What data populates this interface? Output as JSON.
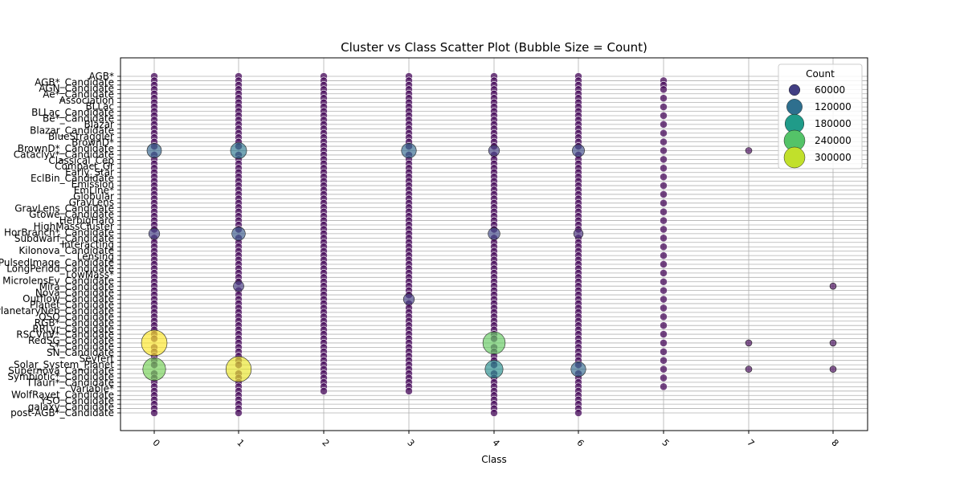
{
  "chart_data": {
    "type": "scatter",
    "title": "Cluster vs Class Scatter Plot (Bubble Size = Count)",
    "xlabel": "Class",
    "ylabel": "",
    "x_categories": [
      "0",
      "1",
      "2",
      "3",
      "4",
      "6",
      "5",
      "7",
      "8"
    ],
    "y_tick_labels_visible": [
      "AGB*",
      "AGB*_Candidate",
      "AGN_Candidate",
      "Ae*_Candidate",
      "Association",
      "BLLac",
      "BLLac_Candidate",
      "Be*_Candidate",
      "Blazar",
      "Blazar_Candidate",
      "BlueStraggler",
      "BrownD*",
      "BrownD*_Candidate",
      "Cataclyv*_Candidate",
      "Classical_Cep",
      "Compact_Gr",
      "Early_Star",
      "EclBin_Candidate",
      "Emission",
      "EmLine*",
      "Globular",
      "GravLens",
      "GravLens_Candidate",
      "Gtowe_Candidate",
      "HerbigHaro",
      "HighMassCluster",
      "HorBranch*_Candidate",
      "Subdwarf_Candidate",
      "Interacting",
      "Kilonova_Candidate",
      "Lensing",
      "PulsedImage_Candidate",
      "LongPeriod_Candidate",
      "LowMass*",
      "MicrolensEv_Candidate",
      "Mira_Candidate",
      "Nova_Candidate",
      "Outflow_Candidate",
      "Planet_Candidate",
      "PlanetaryNeb_Candidate",
      "QSO_Candidate",
      "RGB*_Candidate",
      "RRLyr_Candidate",
      "RSCVnV*_Candidate",
      "RedSG_Candidate",
      "S*_Candidate",
      "SN_Candidate",
      "Seyfert",
      "Solar_System_Planet",
      "Supernova_Candidate",
      "Symbiotic*_Candidate",
      "TTauri*_Candidate",
      "Variable*",
      "WolfRayet_Candidate",
      "YSO_Candidate",
      "galaxy_Candidate",
      "post-AGB*_Candidate"
    ],
    "n_y_rows": 78,
    "bubbles": [
      {
        "x": "0",
        "y_row": 17,
        "count": 105000
      },
      {
        "x": "1",
        "y_row": 17,
        "count": 130000
      },
      {
        "x": "3",
        "y_row": 17,
        "count": 110000
      },
      {
        "x": "4",
        "y_row": 17,
        "count": 60000
      },
      {
        "x": "6",
        "y_row": 17,
        "count": 75000
      },
      {
        "x": "7",
        "y_row": 17,
        "count": 5000
      },
      {
        "x": "0",
        "y_row": 36,
        "count": 60000
      },
      {
        "x": "1",
        "y_row": 36,
        "count": 90000
      },
      {
        "x": "4",
        "y_row": 36,
        "count": 70000
      },
      {
        "x": "6",
        "y_row": 36,
        "count": 45000
      },
      {
        "x": "1",
        "y_row": 48,
        "count": 55000
      },
      {
        "x": "3",
        "y_row": 51,
        "count": 60000
      },
      {
        "x": "8",
        "y_row": 48,
        "count": 5000
      },
      {
        "x": "0",
        "y_row": 61,
        "count": 330000
      },
      {
        "x": "4",
        "y_row": 61,
        "count": 250000
      },
      {
        "x": "7",
        "y_row": 61,
        "count": 5000
      },
      {
        "x": "8",
        "y_row": 61,
        "count": 8000
      },
      {
        "x": "0",
        "y_row": 67,
        "count": 260000
      },
      {
        "x": "1",
        "y_row": 67,
        "count": 320000
      },
      {
        "x": "4",
        "y_row": 67,
        "count": 160000
      },
      {
        "x": "6",
        "y_row": 67,
        "count": 110000
      },
      {
        "x": "7",
        "y_row": 67,
        "count": 5000
      },
      {
        "x": "8",
        "y_row": 67,
        "count": 5000
      }
    ],
    "small_bubble_rows": {
      "0": [
        0,
        77
      ],
      "1": [
        0,
        77
      ],
      "2": [
        0,
        72
      ],
      "3": [
        0,
        72
      ],
      "4": [
        0,
        77
      ],
      "6": [
        0,
        77
      ],
      "5": [
        1,
        72
      ]
    },
    "legend": {
      "title": "Count",
      "entries": [
        "60000",
        "120000",
        "180000",
        "240000",
        "300000"
      ],
      "placement": "upper-right"
    },
    "colormap": "viridis",
    "grid": true,
    "x_tick_rotation": 45
  }
}
